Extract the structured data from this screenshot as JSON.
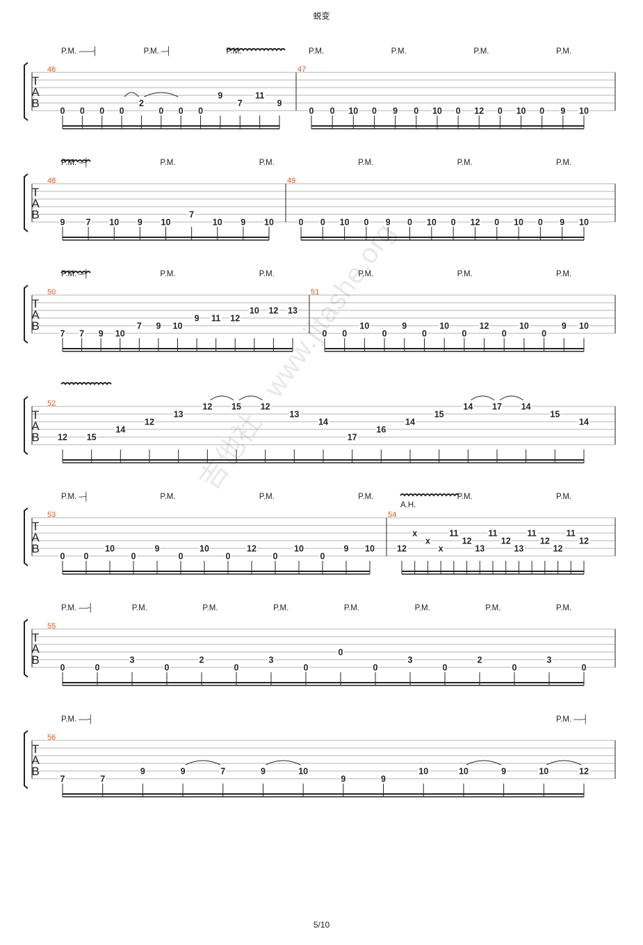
{
  "page": {
    "title": "蜕变",
    "page_number": "5/10",
    "watermark": "吉他社 · www.jitashe.org"
  },
  "labels": {
    "pm": "P.M.",
    "ah": "A.H.",
    "tab_letters": [
      "T",
      "A",
      "B"
    ]
  },
  "colors": {
    "measure_number": "#e05a1a",
    "ink": "#222222",
    "staff_line": "#9a9a9a"
  },
  "systems": [
    {
      "pm": [
        {
          "label": "P.M.",
          "dashes": 3
        },
        {
          "label": "P.M.",
          "dashes": 1
        },
        {
          "label": "P.M.",
          "dashes": 0
        },
        {
          "label": "P.M.",
          "dashes": 0
        },
        {
          "label": "P.M.",
          "dashes": 0
        },
        {
          "label": "P.M.",
          "dashes": 0
        },
        {
          "label": "P.M.",
          "dashes": 0
        }
      ],
      "vibrato": [
        true
      ],
      "measures": [
        {
          "number": "46",
          "notes": [
            {
              "s": 6,
              "f": "0"
            },
            {
              "s": 6,
              "f": "0"
            },
            {
              "s": 6,
              "f": "0"
            },
            {
              "s": 6,
              "f": "0"
            },
            {
              "s": 5,
              "f": "2"
            },
            {
              "s": 6,
              "f": "0"
            },
            {
              "s": 6,
              "f": "0"
            },
            {
              "s": 6,
              "f": "0"
            },
            {
              "s": 4,
              "f": "9"
            },
            {
              "s": 5,
              "f": "7"
            },
            {
              "s": 4,
              "f": "11"
            },
            {
              "s": 5,
              "f": "9"
            }
          ],
          "ties": [
            [
              3,
              4
            ],
            [
              4,
              6
            ]
          ]
        },
        {
          "number": "47",
          "notes": [
            {
              "s": 6,
              "f": "0"
            },
            {
              "s": 6,
              "f": "0"
            },
            {
              "s": 6,
              "f": "10"
            },
            {
              "s": 6,
              "f": "0"
            },
            {
              "s": 6,
              "f": "9"
            },
            {
              "s": 6,
              "f": "0"
            },
            {
              "s": 6,
              "f": "10"
            },
            {
              "s": 6,
              "f": "0"
            },
            {
              "s": 6,
              "f": "12"
            },
            {
              "s": 6,
              "f": "0"
            },
            {
              "s": 6,
              "f": "10"
            },
            {
              "s": 6,
              "f": "0"
            },
            {
              "s": 6,
              "f": "9"
            },
            {
              "s": 6,
              "f": "10"
            }
          ]
        }
      ]
    },
    {
      "pm": [
        {
          "label": "P.M.",
          "dashes": 1
        },
        {
          "label": "P.M.",
          "dashes": 0
        },
        {
          "label": "P.M.",
          "dashes": 0
        },
        {
          "label": "P.M.",
          "dashes": 0
        },
        {
          "label": "P.M.",
          "dashes": 0
        },
        {
          "label": "P.M.",
          "dashes": 0
        }
      ],
      "vibrato": [
        true
      ],
      "measures": [
        {
          "number": "48",
          "notes": [
            {
              "s": 6,
              "f": "9"
            },
            {
              "s": 6,
              "f": "7"
            },
            {
              "s": 6,
              "f": "10"
            },
            {
              "s": 6,
              "f": "9"
            },
            {
              "s": 6,
              "f": "10"
            },
            {
              "s": 5,
              "f": "7"
            },
            {
              "s": 6,
              "f": "10"
            },
            {
              "s": 6,
              "f": "9"
            },
            {
              "s": 6,
              "f": "10"
            }
          ]
        },
        {
          "number": "49",
          "notes": [
            {
              "s": 6,
              "f": "0"
            },
            {
              "s": 6,
              "f": "0"
            },
            {
              "s": 6,
              "f": "10"
            },
            {
              "s": 6,
              "f": "0"
            },
            {
              "s": 6,
              "f": "9"
            },
            {
              "s": 6,
              "f": "0"
            },
            {
              "s": 6,
              "f": "10"
            },
            {
              "s": 6,
              "f": "0"
            },
            {
              "s": 6,
              "f": "12"
            },
            {
              "s": 6,
              "f": "0"
            },
            {
              "s": 6,
              "f": "10"
            },
            {
              "s": 6,
              "f": "0"
            },
            {
              "s": 6,
              "f": "9"
            },
            {
              "s": 6,
              "f": "10"
            }
          ]
        }
      ]
    },
    {
      "pm": [
        {
          "label": "P.M.",
          "dashes": 1
        },
        {
          "label": "P.M.",
          "dashes": 0
        },
        {
          "label": "P.M.",
          "dashes": 0
        },
        {
          "label": "P.M.",
          "dashes": 0
        },
        {
          "label": "P.M.",
          "dashes": 0
        },
        {
          "label": "P.M.",
          "dashes": 0
        }
      ],
      "vibrato": [
        true
      ],
      "measures": [
        {
          "number": "50",
          "notes": [
            {
              "s": 6,
              "f": "7"
            },
            {
              "s": 6,
              "f": "7"
            },
            {
              "s": 6,
              "f": "9"
            },
            {
              "s": 6,
              "f": "10"
            },
            {
              "s": 5,
              "f": "7"
            },
            {
              "s": 5,
              "f": "9"
            },
            {
              "s": 5,
              "f": "10"
            },
            {
              "s": 4,
              "f": "9"
            },
            {
              "s": 4,
              "f": "11"
            },
            {
              "s": 4,
              "f": "12"
            },
            {
              "s": 3,
              "f": "10"
            },
            {
              "s": 3,
              "f": "12"
            },
            {
              "s": 3,
              "f": "13"
            }
          ]
        },
        {
          "number": "51",
          "notes": [
            {
              "s": 6,
              "f": "0"
            },
            {
              "s": 6,
              "f": "0"
            },
            {
              "s": 5,
              "f": "10"
            },
            {
              "s": 6,
              "f": "0"
            },
            {
              "s": 5,
              "f": "9"
            },
            {
              "s": 6,
              "f": "0"
            },
            {
              "s": 5,
              "f": "10"
            },
            {
              "s": 6,
              "f": "0"
            },
            {
              "s": 5,
              "f": "12"
            },
            {
              "s": 6,
              "f": "0"
            },
            {
              "s": 5,
              "f": "10"
            },
            {
              "s": 6,
              "f": "0"
            },
            {
              "s": 5,
              "f": "9"
            },
            {
              "s": 5,
              "f": "10"
            }
          ]
        }
      ]
    },
    {
      "pm": [],
      "vibrato": [
        true
      ],
      "measures": [
        {
          "number": "52",
          "notes": [
            {
              "s": 5,
              "f": "12"
            },
            {
              "s": 5,
              "f": "15"
            },
            {
              "s": 4,
              "f": "14"
            },
            {
              "s": 3,
              "f": "12"
            },
            {
              "s": 2,
              "f": "13"
            },
            {
              "s": 1,
              "f": "12"
            },
            {
              "s": 1,
              "f": "15"
            },
            {
              "s": 1,
              "f": "12"
            },
            {
              "s": 2,
              "f": "13"
            },
            {
              "s": 3,
              "f": "14"
            },
            {
              "s": 5,
              "f": "17"
            },
            {
              "s": 4,
              "f": "16"
            },
            {
              "s": 3,
              "f": "14"
            },
            {
              "s": 2,
              "f": "15"
            },
            {
              "s": 1,
              "f": "14"
            },
            {
              "s": 1,
              "f": "17"
            },
            {
              "s": 1,
              "f": "14"
            },
            {
              "s": 2,
              "f": "15"
            },
            {
              "s": 3,
              "f": "14"
            }
          ],
          "ties": [
            [
              5,
              6
            ],
            [
              6,
              7
            ],
            [
              14,
              15
            ],
            [
              15,
              16
            ]
          ]
        }
      ]
    },
    {
      "pm": [
        {
          "label": "P.M.",
          "dashes": 1
        },
        {
          "label": "P.M.",
          "dashes": 0
        },
        {
          "label": "P.M.",
          "dashes": 0
        },
        {
          "label": "P.M.",
          "dashes": 0
        },
        {
          "label": "P.M.",
          "dashes": 0
        },
        {
          "label": "P.M.",
          "dashes": 0
        }
      ],
      "vibrato": [
        true
      ],
      "measures": [
        {
          "number": "53",
          "notes": [
            {
              "s": 6,
              "f": "0"
            },
            {
              "s": 6,
              "f": "0"
            },
            {
              "s": 5,
              "f": "10"
            },
            {
              "s": 6,
              "f": "0"
            },
            {
              "s": 5,
              "f": "9"
            },
            {
              "s": 6,
              "f": "0"
            },
            {
              "s": 5,
              "f": "10"
            },
            {
              "s": 6,
              "f": "0"
            },
            {
              "s": 5,
              "f": "12"
            },
            {
              "s": 6,
              "f": "0"
            },
            {
              "s": 5,
              "f": "10"
            },
            {
              "s": 6,
              "f": "0"
            },
            {
              "s": 5,
              "f": "9"
            },
            {
              "s": 5,
              "f": "10"
            }
          ]
        },
        {
          "number": "54",
          "notes": [
            {
              "s": 5,
              "f": "12"
            },
            {
              "s": 3,
              "f": "x"
            },
            {
              "s": 4,
              "f": "x"
            },
            {
              "s": 5,
              "f": "x"
            },
            {
              "s": 3,
              "f": "11"
            },
            {
              "s": 4,
              "f": "12"
            },
            {
              "s": 5,
              "f": "13"
            },
            {
              "s": 3,
              "f": "11"
            },
            {
              "s": 4,
              "f": "12"
            },
            {
              "s": 5,
              "f": "13"
            },
            {
              "s": 3,
              "f": "11"
            },
            {
              "s": 4,
              "f": "12"
            },
            {
              "s": 5,
              "f": "12"
            },
            {
              "s": 3,
              "f": "11"
            },
            {
              "s": 4,
              "f": "12"
            }
          ]
        }
      ]
    },
    {
      "pm": [
        {
          "label": "P.M.",
          "dashes": 2
        },
        {
          "label": "P.M.",
          "dashes": 0
        },
        {
          "label": "P.M.",
          "dashes": 0
        },
        {
          "label": "P.M.",
          "dashes": 0
        },
        {
          "label": "P.M.",
          "dashes": 0
        },
        {
          "label": "P.M.",
          "dashes": 0
        },
        {
          "label": "P.M.",
          "dashes": 0
        },
        {
          "label": "P.M.",
          "dashes": 0
        }
      ],
      "vibrato": [],
      "measures": [
        {
          "number": "55",
          "notes": [
            {
              "s": 6,
              "f": "0"
            },
            {
              "s": 6,
              "f": "0"
            },
            {
              "s": 5,
              "f": "3"
            },
            {
              "s": 6,
              "f": "0"
            },
            {
              "s": 5,
              "f": "2"
            },
            {
              "s": 6,
              "f": "0"
            },
            {
              "s": 5,
              "f": "3"
            },
            {
              "s": 6,
              "f": "0"
            },
            {
              "s": 4,
              "f": "0"
            },
            {
              "s": 6,
              "f": "0"
            },
            {
              "s": 5,
              "f": "3"
            },
            {
              "s": 6,
              "f": "0"
            },
            {
              "s": 5,
              "f": "2"
            },
            {
              "s": 6,
              "f": "0"
            },
            {
              "s": 5,
              "f": "3"
            },
            {
              "s": 6,
              "f": "0"
            }
          ]
        }
      ]
    },
    {
      "pm": [
        {
          "label": "P.M.",
          "dashes": 2
        },
        {
          "label": "P.M.",
          "dashes": 2
        }
      ],
      "vibrato": [],
      "measures": [
        {
          "number": "56",
          "notes": [
            {
              "s": 6,
              "f": "7"
            },
            {
              "s": 6,
              "f": "7"
            },
            {
              "s": 5,
              "f": "9"
            },
            {
              "s": 5,
              "f": "9"
            },
            {
              "s": 5,
              "f": "7"
            },
            {
              "s": 5,
              "f": "9"
            },
            {
              "s": 5,
              "f": "10"
            },
            {
              "s": 6,
              "f": "9"
            },
            {
              "s": 6,
              "f": "9"
            },
            {
              "s": 5,
              "f": "10"
            },
            {
              "s": 5,
              "f": "10"
            },
            {
              "s": 5,
              "f": "9"
            },
            {
              "s": 5,
              "f": "10"
            },
            {
              "s": 5,
              "f": "12"
            }
          ],
          "ties": [
            [
              3,
              4
            ],
            [
              5,
              6
            ],
            [
              10,
              11
            ],
            [
              12,
              13
            ]
          ]
        }
      ]
    }
  ]
}
